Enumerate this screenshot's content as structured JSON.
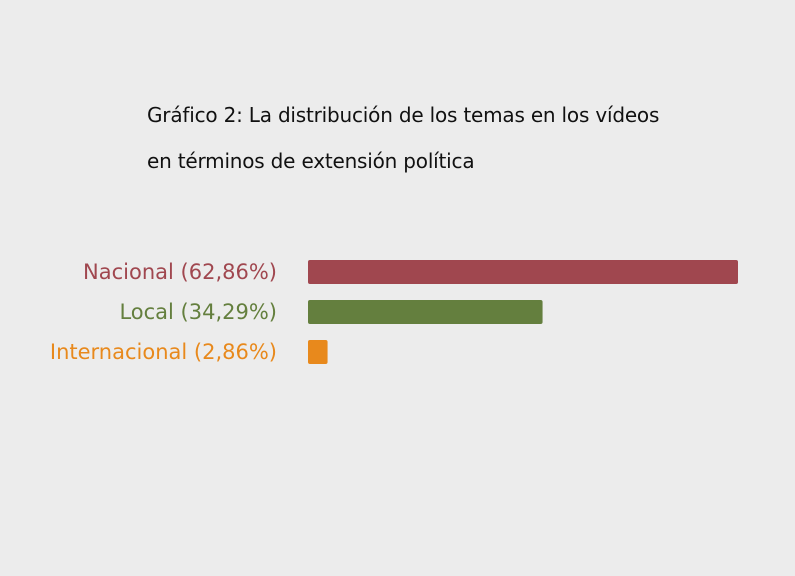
{
  "chart_data": {
    "type": "bar",
    "orientation": "horizontal",
    "title_lines": [
      "Gráfico 2: La distribución de los temas en los vídeos",
      "en términos de extensión política"
    ],
    "categories": [
      "Nacional (62,86%)",
      "Local (34,29%)",
      "Internacional (2,86%)"
    ],
    "values": [
      62.86,
      34.29,
      2.86
    ],
    "colors": [
      "#a0474f",
      "#647f3e",
      "#e8891c"
    ],
    "xlim": [
      0,
      62.86
    ],
    "grid": false,
    "legend": "none"
  }
}
